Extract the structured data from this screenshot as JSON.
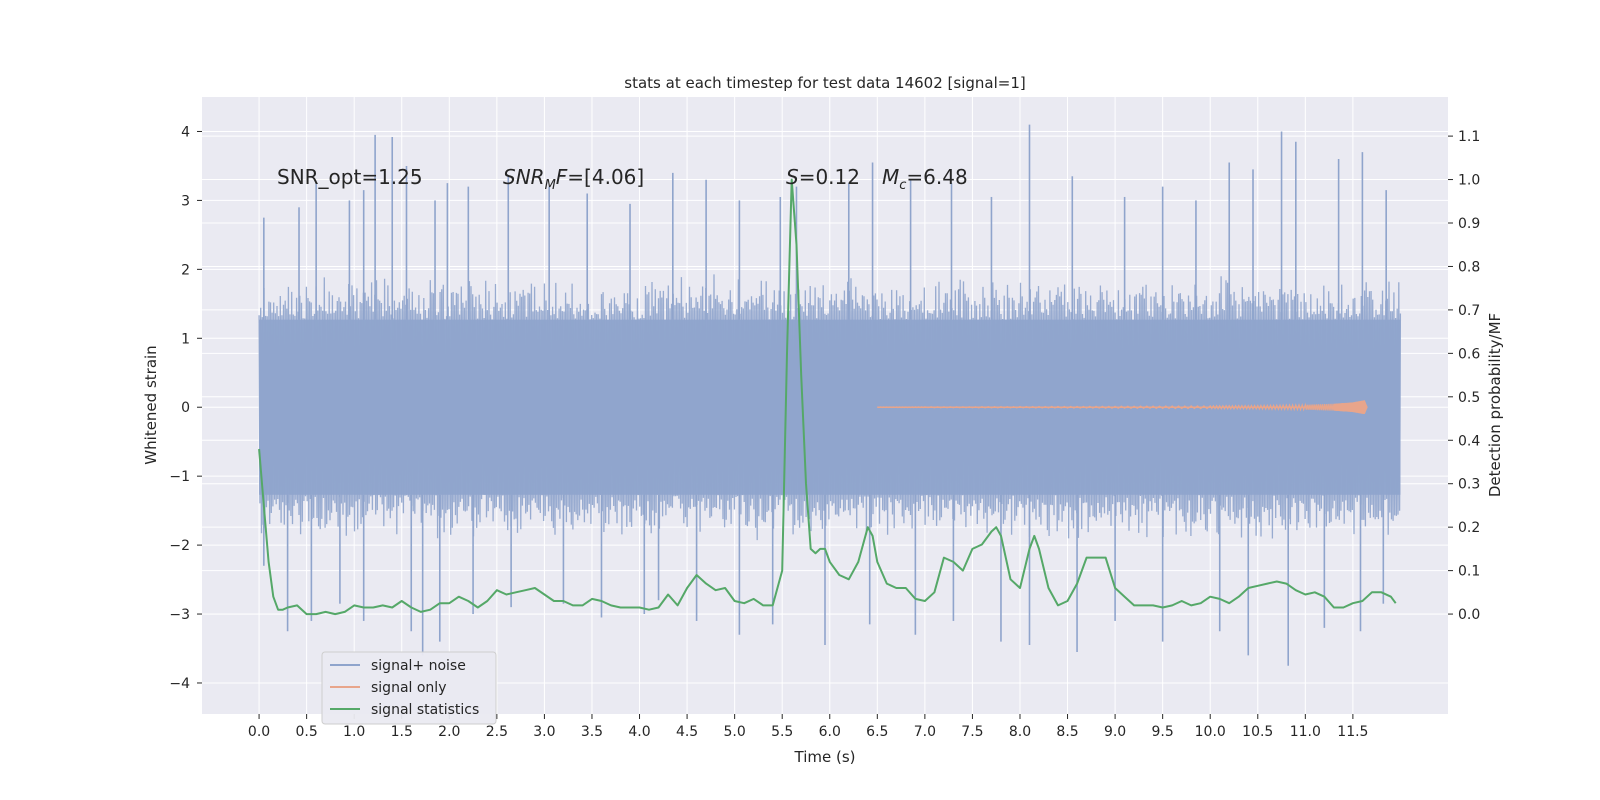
{
  "chart_data": {
    "type": "line",
    "title": "stats at each timestep for test data 14602 [signal=1]",
    "xlabel": "Time (s)",
    "ylabel_left": "Whitened strain",
    "ylabel_right": "Detection probability/MF",
    "xlim": [
      -0.6,
      12.5
    ],
    "ylim_left": [
      -4.45,
      4.5
    ],
    "ylim_right": [
      -0.23,
      1.19
    ],
    "x_ticks": [
      0.0,
      0.5,
      1.0,
      1.5,
      2.0,
      2.5,
      3.0,
      3.5,
      4.0,
      4.5,
      5.0,
      5.5,
      6.0,
      6.5,
      7.0,
      7.5,
      8.0,
      8.5,
      9.0,
      9.5,
      10.0,
      10.5,
      11.0,
      11.5
    ],
    "x_tick_labels": [
      "0.0",
      "0.5",
      "1.0",
      "1.5",
      "2.0",
      "2.5",
      "3.0",
      "3.5",
      "4.0",
      "4.5",
      "5.0",
      "5.5",
      "6.0",
      "6.5",
      "7.0",
      "7.5",
      "8.0",
      "8.5",
      "9.0",
      "9.5",
      "10.0",
      "10.5",
      "11.0",
      "11.5"
    ],
    "y_left_ticks": [
      -4,
      -3,
      -2,
      -1,
      0,
      1,
      2,
      3,
      4
    ],
    "y_left_tick_labels": [
      "−4",
      "−3",
      "−2",
      "−1",
      "0",
      "1",
      "2",
      "3",
      "4"
    ],
    "y_right_ticks": [
      0.0,
      0.1,
      0.2,
      0.3,
      0.4,
      0.5,
      0.6,
      0.7,
      0.8,
      0.9,
      1.0,
      1.1
    ],
    "y_right_tick_labels": [
      "0.0",
      "0.1",
      "0.2",
      "0.3",
      "0.4",
      "0.5",
      "0.6",
      "0.7",
      "0.8",
      "0.9",
      "1.0",
      "1.1"
    ],
    "grid": true,
    "legend_position": "lower-left",
    "annotations": {
      "snr_opt": "SNR_opt=1.25",
      "snr_mf_main": "SNR",
      "snr_mf_sub": "M",
      "snr_mf_tail": "F",
      "snr_mf_value": "=[4.06]",
      "s_symbol": "S",
      "s_value": "=0.12",
      "mc_symbol": "M",
      "mc_sub": "c",
      "mc_value": "=6.48"
    },
    "series": [
      {
        "name": "signal+ noise",
        "axis": "left",
        "color": "#8fa4cc",
        "style": "dense-noise",
        "x_range": [
          0.0,
          12.0
        ],
        "core_band": [
          -1.27,
          1.27
        ],
        "envelope": [
          -1.95,
          1.95
        ],
        "spikes": [
          [
            0.05,
            2.75
          ],
          [
            0.42,
            2.9
          ],
          [
            0.6,
            3.25
          ],
          [
            0.95,
            3.0
          ],
          [
            1.1,
            3.15
          ],
          [
            1.22,
            3.95
          ],
          [
            1.4,
            3.92
          ],
          [
            1.55,
            3.5
          ],
          [
            1.85,
            3.0
          ],
          [
            1.98,
            3.25
          ],
          [
            2.2,
            3.2
          ],
          [
            2.62,
            3.35
          ],
          [
            3.05,
            3.2
          ],
          [
            3.45,
            3.1
          ],
          [
            3.9,
            2.95
          ],
          [
            4.35,
            3.4
          ],
          [
            4.7,
            3.3
          ],
          [
            5.05,
            3.0
          ],
          [
            5.48,
            3.05
          ],
          [
            5.65,
            3.2
          ],
          [
            6.2,
            3.25
          ],
          [
            6.45,
            3.55
          ],
          [
            6.85,
            3.3
          ],
          [
            7.28,
            3.25
          ],
          [
            7.7,
            3.05
          ],
          [
            8.1,
            4.1
          ],
          [
            8.55,
            3.35
          ],
          [
            9.1,
            3.05
          ],
          [
            9.5,
            3.2
          ],
          [
            9.85,
            3.0
          ],
          [
            10.2,
            3.55
          ],
          [
            10.45,
            3.45
          ],
          [
            10.75,
            4.0
          ],
          [
            10.9,
            3.85
          ],
          [
            11.35,
            3.6
          ],
          [
            11.6,
            3.7
          ],
          [
            11.85,
            3.15
          ],
          [
            0.05,
            -2.3
          ],
          [
            0.3,
            -3.25
          ],
          [
            0.55,
            -3.1
          ],
          [
            0.85,
            -2.85
          ],
          [
            1.1,
            -3.1
          ],
          [
            1.6,
            -3.25
          ],
          [
            1.72,
            -3.6
          ],
          [
            1.9,
            -3.4
          ],
          [
            2.25,
            -3.0
          ],
          [
            2.65,
            -2.9
          ],
          [
            3.2,
            -2.85
          ],
          [
            3.6,
            -3.05
          ],
          [
            4.05,
            -3.0
          ],
          [
            4.2,
            -2.8
          ],
          [
            4.6,
            -3.1
          ],
          [
            5.05,
            -3.3
          ],
          [
            5.4,
            -3.15
          ],
          [
            5.95,
            -3.45
          ],
          [
            6.42,
            -3.15
          ],
          [
            6.9,
            -3.3
          ],
          [
            7.3,
            -3.1
          ],
          [
            7.8,
            -3.4
          ],
          [
            8.1,
            -3.45
          ],
          [
            8.6,
            -3.55
          ],
          [
            9.0,
            -3.1
          ],
          [
            9.5,
            -3.4
          ],
          [
            10.1,
            -3.25
          ],
          [
            10.4,
            -3.6
          ],
          [
            10.82,
            -3.75
          ],
          [
            11.2,
            -3.2
          ],
          [
            11.58,
            -3.25
          ],
          [
            11.82,
            -2.85
          ]
        ]
      },
      {
        "name": "signal only",
        "axis": "left",
        "color": "#e8a58b",
        "style": "chirp",
        "x": [
          6.5,
          7.0,
          8.0,
          9.0,
          10.0,
          10.5,
          11.0,
          11.3,
          11.5,
          11.62,
          11.65
        ],
        "amplitude": [
          0.004,
          0.006,
          0.01,
          0.014,
          0.02,
          0.025,
          0.035,
          0.05,
          0.07,
          0.1,
          0.0
        ]
      },
      {
        "name": "signal statistics",
        "axis": "right",
        "color": "#55a868",
        "style": "line",
        "x": [
          0.0,
          0.05,
          0.1,
          0.15,
          0.2,
          0.25,
          0.3,
          0.4,
          0.5,
          0.6,
          0.7,
          0.8,
          0.9,
          1.0,
          1.1,
          1.2,
          1.3,
          1.4,
          1.5,
          1.6,
          1.7,
          1.8,
          1.9,
          2.0,
          2.1,
          2.2,
          2.3,
          2.4,
          2.5,
          2.6,
          2.7,
          2.8,
          2.9,
          3.0,
          3.1,
          3.2,
          3.3,
          3.4,
          3.5,
          3.6,
          3.7,
          3.8,
          3.9,
          4.0,
          4.1,
          4.2,
          4.3,
          4.4,
          4.5,
          4.6,
          4.7,
          4.8,
          4.9,
          5.0,
          5.1,
          5.2,
          5.3,
          5.4,
          5.5,
          5.55,
          5.6,
          5.65,
          5.7,
          5.75,
          5.8,
          5.85,
          5.9,
          5.95,
          6.0,
          6.1,
          6.2,
          6.3,
          6.4,
          6.45,
          6.5,
          6.6,
          6.7,
          6.8,
          6.9,
          7.0,
          7.1,
          7.2,
          7.3,
          7.4,
          7.5,
          7.6,
          7.7,
          7.75,
          7.8,
          7.9,
          8.0,
          8.1,
          8.15,
          8.2,
          8.3,
          8.4,
          8.5,
          8.6,
          8.7,
          8.8,
          8.9,
          9.0,
          9.1,
          9.2,
          9.3,
          9.4,
          9.5,
          9.6,
          9.7,
          9.8,
          9.9,
          10.0,
          10.1,
          10.2,
          10.3,
          10.4,
          10.5,
          10.6,
          10.7,
          10.8,
          10.9,
          11.0,
          11.1,
          11.2,
          11.3,
          11.4,
          11.5,
          11.6,
          11.7,
          11.8,
          11.9,
          11.95
        ],
        "y": [
          0.38,
          0.25,
          0.12,
          0.04,
          0.01,
          0.01,
          0.015,
          0.02,
          0.0,
          0.0,
          0.005,
          0.0,
          0.005,
          0.02,
          0.015,
          0.015,
          0.02,
          0.015,
          0.03,
          0.015,
          0.005,
          0.01,
          0.025,
          0.025,
          0.04,
          0.03,
          0.015,
          0.03,
          0.055,
          0.045,
          0.05,
          0.055,
          0.06,
          0.045,
          0.03,
          0.03,
          0.02,
          0.02,
          0.035,
          0.03,
          0.02,
          0.015,
          0.015,
          0.015,
          0.01,
          0.015,
          0.045,
          0.02,
          0.06,
          0.09,
          0.07,
          0.055,
          0.06,
          0.03,
          0.025,
          0.035,
          0.02,
          0.02,
          0.1,
          0.6,
          1.0,
          0.85,
          0.55,
          0.3,
          0.15,
          0.14,
          0.15,
          0.15,
          0.12,
          0.09,
          0.08,
          0.12,
          0.2,
          0.18,
          0.12,
          0.07,
          0.06,
          0.06,
          0.035,
          0.03,
          0.05,
          0.13,
          0.12,
          0.1,
          0.15,
          0.16,
          0.19,
          0.2,
          0.18,
          0.08,
          0.06,
          0.15,
          0.18,
          0.15,
          0.06,
          0.02,
          0.03,
          0.07,
          0.13,
          0.13,
          0.13,
          0.06,
          0.04,
          0.02,
          0.02,
          0.02,
          0.015,
          0.02,
          0.03,
          0.02,
          0.025,
          0.04,
          0.035,
          0.025,
          0.04,
          0.06,
          0.065,
          0.07,
          0.075,
          0.07,
          0.055,
          0.045,
          0.05,
          0.04,
          0.015,
          0.015,
          0.025,
          0.03,
          0.05,
          0.05,
          0.04,
          0.025
        ]
      }
    ]
  }
}
